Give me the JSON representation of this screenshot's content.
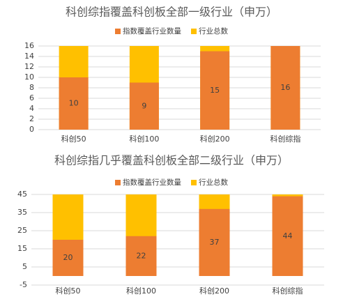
{
  "chart_data": [
    {
      "type": "bar",
      "title": "科创综指覆盖科创板全部一级行业（申万）",
      "categories": [
        "科创50",
        "科创100",
        "科创200",
        "科创综指"
      ],
      "series": [
        {
          "name": "指数覆盖行业数量",
          "color": "#ED7D31",
          "values": [
            10,
            9,
            15,
            16
          ],
          "data_labels": true
        },
        {
          "name": "行业总数",
          "color": "#FFC000",
          "values": [
            16,
            16,
            16,
            16
          ]
        }
      ],
      "overlap": true,
      "ylim": [
        0,
        16
      ],
      "yticks": [
        0,
        2,
        4,
        6,
        8,
        10,
        12,
        14,
        16
      ],
      "grid": true,
      "legend": "top"
    },
    {
      "type": "bar",
      "title": "科创综指几乎覆盖科创板全部二级行业（申万）",
      "categories": [
        "科创50",
        "科创100",
        "科创200",
        "科创综指"
      ],
      "series": [
        {
          "name": "指数覆盖行业数量",
          "color": "#ED7D31",
          "values": [
            20,
            22,
            37,
            44
          ],
          "data_labels": true
        },
        {
          "name": "行业总数",
          "color": "#FFC000",
          "values": [
            45,
            45,
            45,
            45
          ]
        }
      ],
      "overlap": true,
      "ylim": [
        -5,
        45
      ],
      "yticks": [
        -5,
        5,
        15,
        25,
        35,
        45
      ],
      "grid": true,
      "legend": "top"
    }
  ]
}
